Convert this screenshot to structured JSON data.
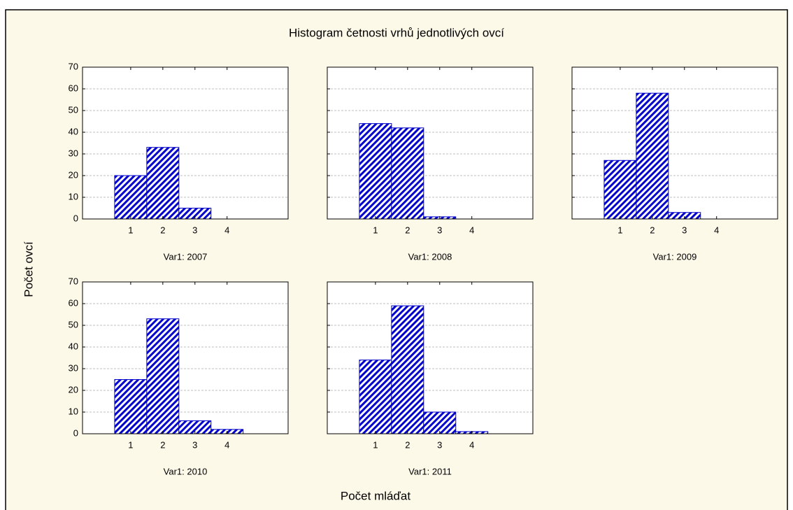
{
  "figure": {
    "title": "Histogram četnosti vrhů jednotlivých ovcí",
    "x_label": "Počet mláďat",
    "y_label": "Počet ovcí"
  },
  "chart_data": [
    {
      "type": "histogram",
      "title": "Var1: 2007",
      "bins": [
        0.5,
        1.5,
        2.5,
        3.5,
        4.5
      ],
      "values": [
        20,
        33,
        5,
        0
      ],
      "color": "#0000cc",
      "xlim": [
        -0.5,
        5.9
      ],
      "xticks": [
        1,
        2,
        3,
        4
      ],
      "ylim": [
        0,
        70
      ],
      "yticks": [
        0,
        10,
        20,
        30,
        40,
        50,
        60,
        70
      ],
      "grid": true
    },
    {
      "type": "histogram",
      "title": "Var1: 2008",
      "bins": [
        0.5,
        1.5,
        2.5,
        3.5,
        4.5
      ],
      "values": [
        44,
        42,
        1,
        0
      ],
      "color": "#0000cc",
      "xlim": [
        -0.5,
        5.9
      ],
      "xticks": [
        1,
        2,
        3,
        4
      ],
      "ylim": [
        0,
        70
      ],
      "yticks": [
        0,
        10,
        20,
        30,
        40,
        50,
        60,
        70
      ],
      "grid": true
    },
    {
      "type": "histogram",
      "title": "Var1: 2009",
      "bins": [
        0.5,
        1.5,
        2.5,
        3.5,
        4.5
      ],
      "values": [
        27,
        58,
        3,
        0
      ],
      "color": "#0000cc",
      "xlim": [
        -0.5,
        5.9
      ],
      "xticks": [
        1,
        2,
        3,
        4
      ],
      "ylim": [
        0,
        70
      ],
      "yticks": [
        0,
        10,
        20,
        30,
        40,
        50,
        60,
        70
      ],
      "grid": true
    },
    {
      "type": "histogram",
      "title": "Var1: 2010",
      "bins": [
        0.5,
        1.5,
        2.5,
        3.5,
        4.5
      ],
      "values": [
        25,
        53,
        6,
        2
      ],
      "color": "#0000cc",
      "xlim": [
        -0.5,
        5.9
      ],
      "xticks": [
        1,
        2,
        3,
        4
      ],
      "ylim": [
        0,
        70
      ],
      "yticks": [
        0,
        10,
        20,
        30,
        40,
        50,
        60,
        70
      ],
      "grid": true
    },
    {
      "type": "histogram",
      "title": "Var1: 2011",
      "bins": [
        0.5,
        1.5,
        2.5,
        3.5,
        4.5
      ],
      "values": [
        34,
        59,
        10,
        1
      ],
      "color": "#0000cc",
      "xlim": [
        -0.5,
        5.9
      ],
      "xticks": [
        1,
        2,
        3,
        4
      ],
      "ylim": [
        0,
        70
      ],
      "yticks": [
        0,
        10,
        20,
        30,
        40,
        50,
        60,
        70
      ],
      "grid": true
    }
  ]
}
